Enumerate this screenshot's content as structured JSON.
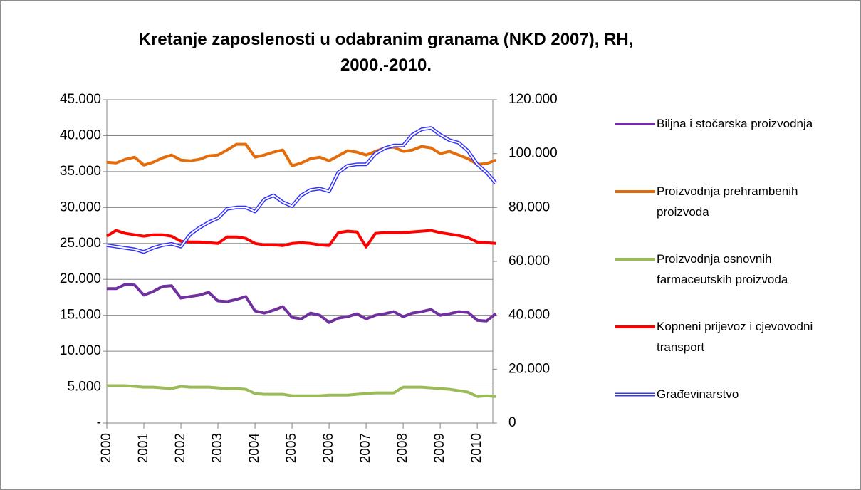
{
  "chart_data": {
    "type": "line",
    "title": "Kretanje zaposlenosti u odabranim granama (NKD 2007), RH, 2000.-2010.",
    "x": [
      2000,
      2000.25,
      2000.5,
      2000.75,
      2001,
      2001.25,
      2001.5,
      2001.75,
      2002,
      2002.25,
      2002.5,
      2002.75,
      2003,
      2003.25,
      2003.5,
      2003.75,
      2004,
      2004.25,
      2004.5,
      2004.75,
      2005,
      2005.25,
      2005.5,
      2005.75,
      2006,
      2006.25,
      2006.5,
      2006.75,
      2007,
      2007.25,
      2007.5,
      2007.75,
      2008,
      2008.25,
      2008.5,
      2008.75,
      2009,
      2009.25,
      2009.5,
      2009.75,
      2010,
      2010.25,
      2010.5
    ],
    "xlim": [
      2000,
      2010.42
    ],
    "xticks": [
      2000,
      2001,
      2002,
      2003,
      2004,
      2005,
      2006,
      2007,
      2008,
      2009,
      2010
    ],
    "ylim": [
      0,
      45000
    ],
    "yticks": [
      {
        "value": 0,
        "label": "-"
      },
      {
        "value": 5000,
        "label": "5.000"
      },
      {
        "value": 10000,
        "label": "10.000"
      },
      {
        "value": 15000,
        "label": "15.000"
      },
      {
        "value": 20000,
        "label": "20.000"
      },
      {
        "value": 25000,
        "label": "25.000"
      },
      {
        "value": 30000,
        "label": "30.000"
      },
      {
        "value": 35000,
        "label": "35.000"
      },
      {
        "value": 40000,
        "label": "40.000"
      },
      {
        "value": 45000,
        "label": "45.000"
      }
    ],
    "y2lim": [
      0,
      120000
    ],
    "y2ticks": [
      0,
      {
        "value": 20000,
        "label": "20.000"
      },
      {
        "value": 40000,
        "label": "40.000"
      },
      {
        "value": 60000,
        "label": "60.000"
      },
      {
        "value": 80000,
        "label": "80.000"
      },
      {
        "value": 100000,
        "label": "100.000"
      },
      {
        "value": 120000,
        "label": "120.000"
      }
    ],
    "series": [
      {
        "name": "Biljna i stočarska proizvodnja",
        "color": "#7030a0",
        "values": [
          18700,
          18700,
          19300,
          19200,
          17800,
          18300,
          19000,
          19100,
          17400,
          17600,
          17800,
          18200,
          17000,
          16900,
          17200,
          17600,
          15600,
          15300,
          15700,
          16200,
          14700,
          14500,
          15300,
          15000,
          14000,
          14600,
          14800,
          15200,
          14500,
          15000,
          15200,
          15500,
          14800,
          15300,
          15500,
          15800,
          15000,
          15200,
          15500,
          15400,
          14300,
          14200,
          15200
        ]
      },
      {
        "name": "Proizvodnja prehrambenih proizvoda",
        "color": "#e46c0a",
        "values": [
          36300,
          36200,
          36700,
          37000,
          35900,
          36300,
          36900,
          37300,
          36600,
          36500,
          36700,
          37200,
          37300,
          38000,
          38800,
          38800,
          37000,
          37300,
          37700,
          38000,
          35800,
          36200,
          36800,
          37000,
          36500,
          37200,
          37900,
          37700,
          37300,
          37800,
          38300,
          38400,
          37800,
          38000,
          38500,
          38300,
          37500,
          37800,
          37300,
          36800,
          36000,
          36100,
          36600
        ]
      },
      {
        "name": "Proizvodnja osnovnih farmaceutskih proizvoda",
        "color": "#9bbb59",
        "values": [
          5200,
          5200,
          5200,
          5100,
          5000,
          5000,
          4900,
          4800,
          5100,
          5000,
          5000,
          5000,
          4900,
          4800,
          4800,
          4700,
          4100,
          4000,
          4000,
          4000,
          3800,
          3800,
          3800,
          3800,
          3900,
          3900,
          3900,
          4000,
          4100,
          4200,
          4200,
          4200,
          5000,
          5000,
          5000,
          4900,
          4800,
          4700,
          4500,
          4300,
          3700,
          3800,
          3700
        ]
      },
      {
        "name": "Kopneni prijevoz i cjevovodni transport",
        "color": "#ff0000",
        "values": [
          26000,
          26800,
          26400,
          26200,
          26000,
          26200,
          26200,
          26000,
          25300,
          25200,
          25200,
          25100,
          25000,
          25900,
          25900,
          25700,
          25000,
          24800,
          24800,
          24700,
          25000,
          25100,
          25000,
          24800,
          24700,
          26500,
          26700,
          26600,
          24500,
          26400,
          26500,
          26500,
          26500,
          26600,
          26700,
          26800,
          26500,
          26300,
          26100,
          25800,
          25200,
          25100,
          25000
        ]
      },
      {
        "name": "Građevinarstvo",
        "color": "#3333ff",
        "axis": "y2",
        "values": [
          66000,
          65500,
          65000,
          64500,
          63500,
          65000,
          66000,
          66500,
          65500,
          70000,
          72500,
          74500,
          76000,
          79500,
          80000,
          80000,
          78500,
          83000,
          84500,
          82000,
          80500,
          84500,
          86500,
          87000,
          86000,
          93000,
          95500,
          96000,
          96000,
          100000,
          102000,
          103000,
          103000,
          107000,
          109000,
          109500,
          107000,
          105000,
          104000,
          101000,
          96000,
          93000,
          89000
        ]
      }
    ]
  }
}
